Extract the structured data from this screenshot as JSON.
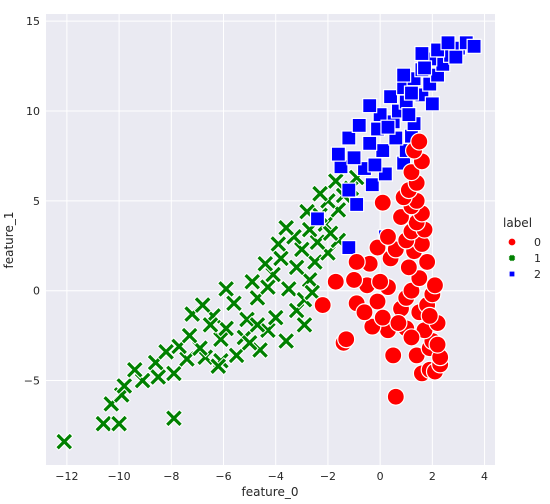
{
  "chart_data": {
    "type": "scatter",
    "xlabel": "feature_0",
    "ylabel": "feature_1",
    "xlim": [
      -12.8,
      4.4
    ],
    "ylim": [
      -9.7,
      15.4
    ],
    "x_ticks": [
      -12,
      -10,
      -8,
      -6,
      -4,
      -2,
      0,
      2,
      4
    ],
    "y_ticks": [
      -5,
      0,
      5,
      10,
      15
    ],
    "grid": true,
    "background": "#EAEAF2",
    "legend": {
      "title": "label",
      "placement": "right",
      "entries": [
        "0",
        "1",
        "2"
      ]
    },
    "series": [
      {
        "name": "0",
        "marker": "circle",
        "color": "#FF0000",
        "points": [
          [
            0.6,
            -5.9
          ],
          [
            1.6,
            -4.6
          ],
          [
            1.9,
            -4.4
          ],
          [
            2.1,
            -4.5
          ],
          [
            1.4,
            -3.6
          ],
          [
            0.5,
            -3.6
          ],
          [
            1.9,
            -3.2
          ],
          [
            2.3,
            -4.1
          ],
          [
            2.0,
            -2.8
          ],
          [
            1.7,
            -2.2
          ],
          [
            1.0,
            -2.1
          ],
          [
            0.3,
            -2.2
          ],
          [
            -0.3,
            -2.0
          ],
          [
            -1.4,
            -2.9
          ],
          [
            -1.3,
            -2.7
          ],
          [
            2.2,
            -1.8
          ],
          [
            1.5,
            -1.2
          ],
          [
            0.8,
            -1.0
          ],
          [
            -0.1,
            -0.6
          ],
          [
            -0.9,
            -0.7
          ],
          [
            -2.2,
            -0.8
          ],
          [
            1.0,
            -0.4
          ],
          [
            1.8,
            -0.8
          ],
          [
            2.0,
            -0.2
          ],
          [
            1.2,
            0.0
          ],
          [
            0.3,
            0.2
          ],
          [
            -0.5,
            0.3
          ],
          [
            -1.0,
            0.6
          ],
          [
            -1.7,
            0.5
          ],
          [
            1.5,
            0.7
          ],
          [
            0.0,
            0.5
          ],
          [
            1.1,
            1.3
          ],
          [
            -0.4,
            1.5
          ],
          [
            -0.9,
            1.6
          ],
          [
            1.8,
            1.6
          ],
          [
            0.4,
            1.8
          ],
          [
            1.3,
            2.2
          ],
          [
            0.6,
            2.3
          ],
          [
            -0.1,
            2.4
          ],
          [
            1.6,
            2.6
          ],
          [
            1.0,
            2.8
          ],
          [
            0.3,
            3.0
          ],
          [
            1.2,
            3.3
          ],
          [
            1.7,
            3.4
          ],
          [
            1.4,
            3.8
          ],
          [
            0.8,
            4.1
          ],
          [
            1.6,
            4.3
          ],
          [
            1.2,
            4.7
          ],
          [
            0.1,
            4.9
          ],
          [
            1.4,
            5.0
          ],
          [
            0.9,
            5.2
          ],
          [
            1.1,
            5.6
          ],
          [
            1.4,
            6.0
          ],
          [
            1.2,
            6.6
          ],
          [
            1.6,
            7.2
          ],
          [
            1.3,
            7.8
          ],
          [
            1.5,
            8.3
          ],
          [
            2.3,
            -3.7
          ],
          [
            2.2,
            -3.0
          ],
          [
            0.1,
            -1.5
          ],
          [
            -0.6,
            -1.2
          ],
          [
            1.2,
            -2.6
          ],
          [
            0.7,
            -1.8
          ],
          [
            2.1,
            0.3
          ],
          [
            1.9,
            -1.4
          ]
        ]
      },
      {
        "name": "1",
        "marker": "x",
        "color": "#008000",
        "points": [
          [
            -12.1,
            -8.4
          ],
          [
            -10.6,
            -7.4
          ],
          [
            -10.0,
            -7.4
          ],
          [
            -7.9,
            -7.1
          ],
          [
            -10.3,
            -6.3
          ],
          [
            -9.9,
            -5.8
          ],
          [
            -9.8,
            -5.3
          ],
          [
            -9.1,
            -5.0
          ],
          [
            -8.5,
            -4.8
          ],
          [
            -7.9,
            -4.6
          ],
          [
            -8.6,
            -4.0
          ],
          [
            -7.4,
            -3.8
          ],
          [
            -6.7,
            -3.7
          ],
          [
            -6.1,
            -3.9
          ],
          [
            -5.5,
            -3.6
          ],
          [
            -6.9,
            -3.2
          ],
          [
            -7.7,
            -3.1
          ],
          [
            -4.6,
            -3.3
          ],
          [
            -3.6,
            -2.8
          ],
          [
            -2.9,
            -1.9
          ],
          [
            -5.2,
            -2.6
          ],
          [
            -4.3,
            -2.2
          ],
          [
            -6.1,
            -2.7
          ],
          [
            -5.9,
            -2.1
          ],
          [
            -5.1,
            -1.6
          ],
          [
            -4.0,
            -1.5
          ],
          [
            -3.2,
            -1.1
          ],
          [
            -6.4,
            -1.4
          ],
          [
            -7.2,
            -1.3
          ],
          [
            -6.8,
            -0.8
          ],
          [
            -5.6,
            -0.7
          ],
          [
            -4.7,
            -0.4
          ],
          [
            -3.5,
            0.1
          ],
          [
            -2.7,
            0.6
          ],
          [
            -5.9,
            0.1
          ],
          [
            -4.9,
            0.5
          ],
          [
            -4.1,
            0.9
          ],
          [
            -3.2,
            1.3
          ],
          [
            -2.5,
            1.6
          ],
          [
            -2.0,
            2.1
          ],
          [
            -3.8,
            1.8
          ],
          [
            -4.4,
            1.5
          ],
          [
            -3.0,
            2.3
          ],
          [
            -2.4,
            2.7
          ],
          [
            -1.6,
            2.8
          ],
          [
            -3.3,
            3.0
          ],
          [
            -2.7,
            3.4
          ],
          [
            -2.1,
            3.7
          ],
          [
            -3.6,
            3.5
          ],
          [
            -2.3,
            4.2
          ],
          [
            -1.6,
            4.5
          ],
          [
            -2.8,
            4.4
          ],
          [
            -2.0,
            5.0
          ],
          [
            -1.4,
            5.3
          ],
          [
            -2.3,
            5.4
          ],
          [
            -1.1,
            5.7
          ],
          [
            -1.7,
            6.1
          ],
          [
            -0.9,
            6.3
          ],
          [
            -4.7,
            -1.9
          ],
          [
            -7.3,
            -2.5
          ],
          [
            -8.2,
            -3.4
          ],
          [
            -9.4,
            -4.4
          ],
          [
            -6.2,
            -4.2
          ],
          [
            -5.0,
            -2.9
          ],
          [
            -2.9,
            -0.5
          ],
          [
            -3.9,
            2.6
          ],
          [
            -2.6,
            -0.1
          ],
          [
            -1.9,
            3.2
          ],
          [
            -4.3,
            0.2
          ],
          [
            -6.5,
            -1.9
          ]
        ]
      },
      {
        "name": "2",
        "marker": "square",
        "color": "#0000FF",
        "points": [
          [
            -2.4,
            4.0
          ],
          [
            -0.9,
            4.8
          ],
          [
            -1.2,
            5.6
          ],
          [
            -0.3,
            5.9
          ],
          [
            0.2,
            6.5
          ],
          [
            -0.6,
            6.8
          ],
          [
            -1.5,
            6.9
          ],
          [
            0.9,
            7.1
          ],
          [
            -1.0,
            7.4
          ],
          [
            0.1,
            7.8
          ],
          [
            1.0,
            7.8
          ],
          [
            -1.6,
            7.6
          ],
          [
            -0.4,
            8.2
          ],
          [
            0.6,
            8.5
          ],
          [
            -1.2,
            8.5
          ],
          [
            1.2,
            8.6
          ],
          [
            -0.1,
            9.0
          ],
          [
            -0.8,
            9.2
          ],
          [
            0.5,
            9.4
          ],
          [
            1.3,
            9.3
          ],
          [
            0.0,
            9.8
          ],
          [
            0.7,
            10.0
          ],
          [
            -0.4,
            10.3
          ],
          [
            1.0,
            10.5
          ],
          [
            0.4,
            10.8
          ],
          [
            1.6,
            10.9
          ],
          [
            0.9,
            11.3
          ],
          [
            1.9,
            11.5
          ],
          [
            1.3,
            11.8
          ],
          [
            2.2,
            12.0
          ],
          [
            1.6,
            12.3
          ],
          [
            0.9,
            12.0
          ],
          [
            2.4,
            12.6
          ],
          [
            1.9,
            12.9
          ],
          [
            2.7,
            13.1
          ],
          [
            2.2,
            13.4
          ],
          [
            1.6,
            13.2
          ],
          [
            3.0,
            13.5
          ],
          [
            2.6,
            13.8
          ],
          [
            3.3,
            13.8
          ],
          [
            3.6,
            13.6
          ],
          [
            1.2,
            11.0
          ],
          [
            2.0,
            10.4
          ],
          [
            0.2,
            3.0
          ],
          [
            -1.2,
            2.4
          ],
          [
            1.1,
            9.8
          ],
          [
            0.3,
            9.1
          ],
          [
            1.7,
            12.4
          ],
          [
            2.9,
            13.0
          ],
          [
            -0.2,
            7.0
          ]
        ]
      }
    ]
  }
}
